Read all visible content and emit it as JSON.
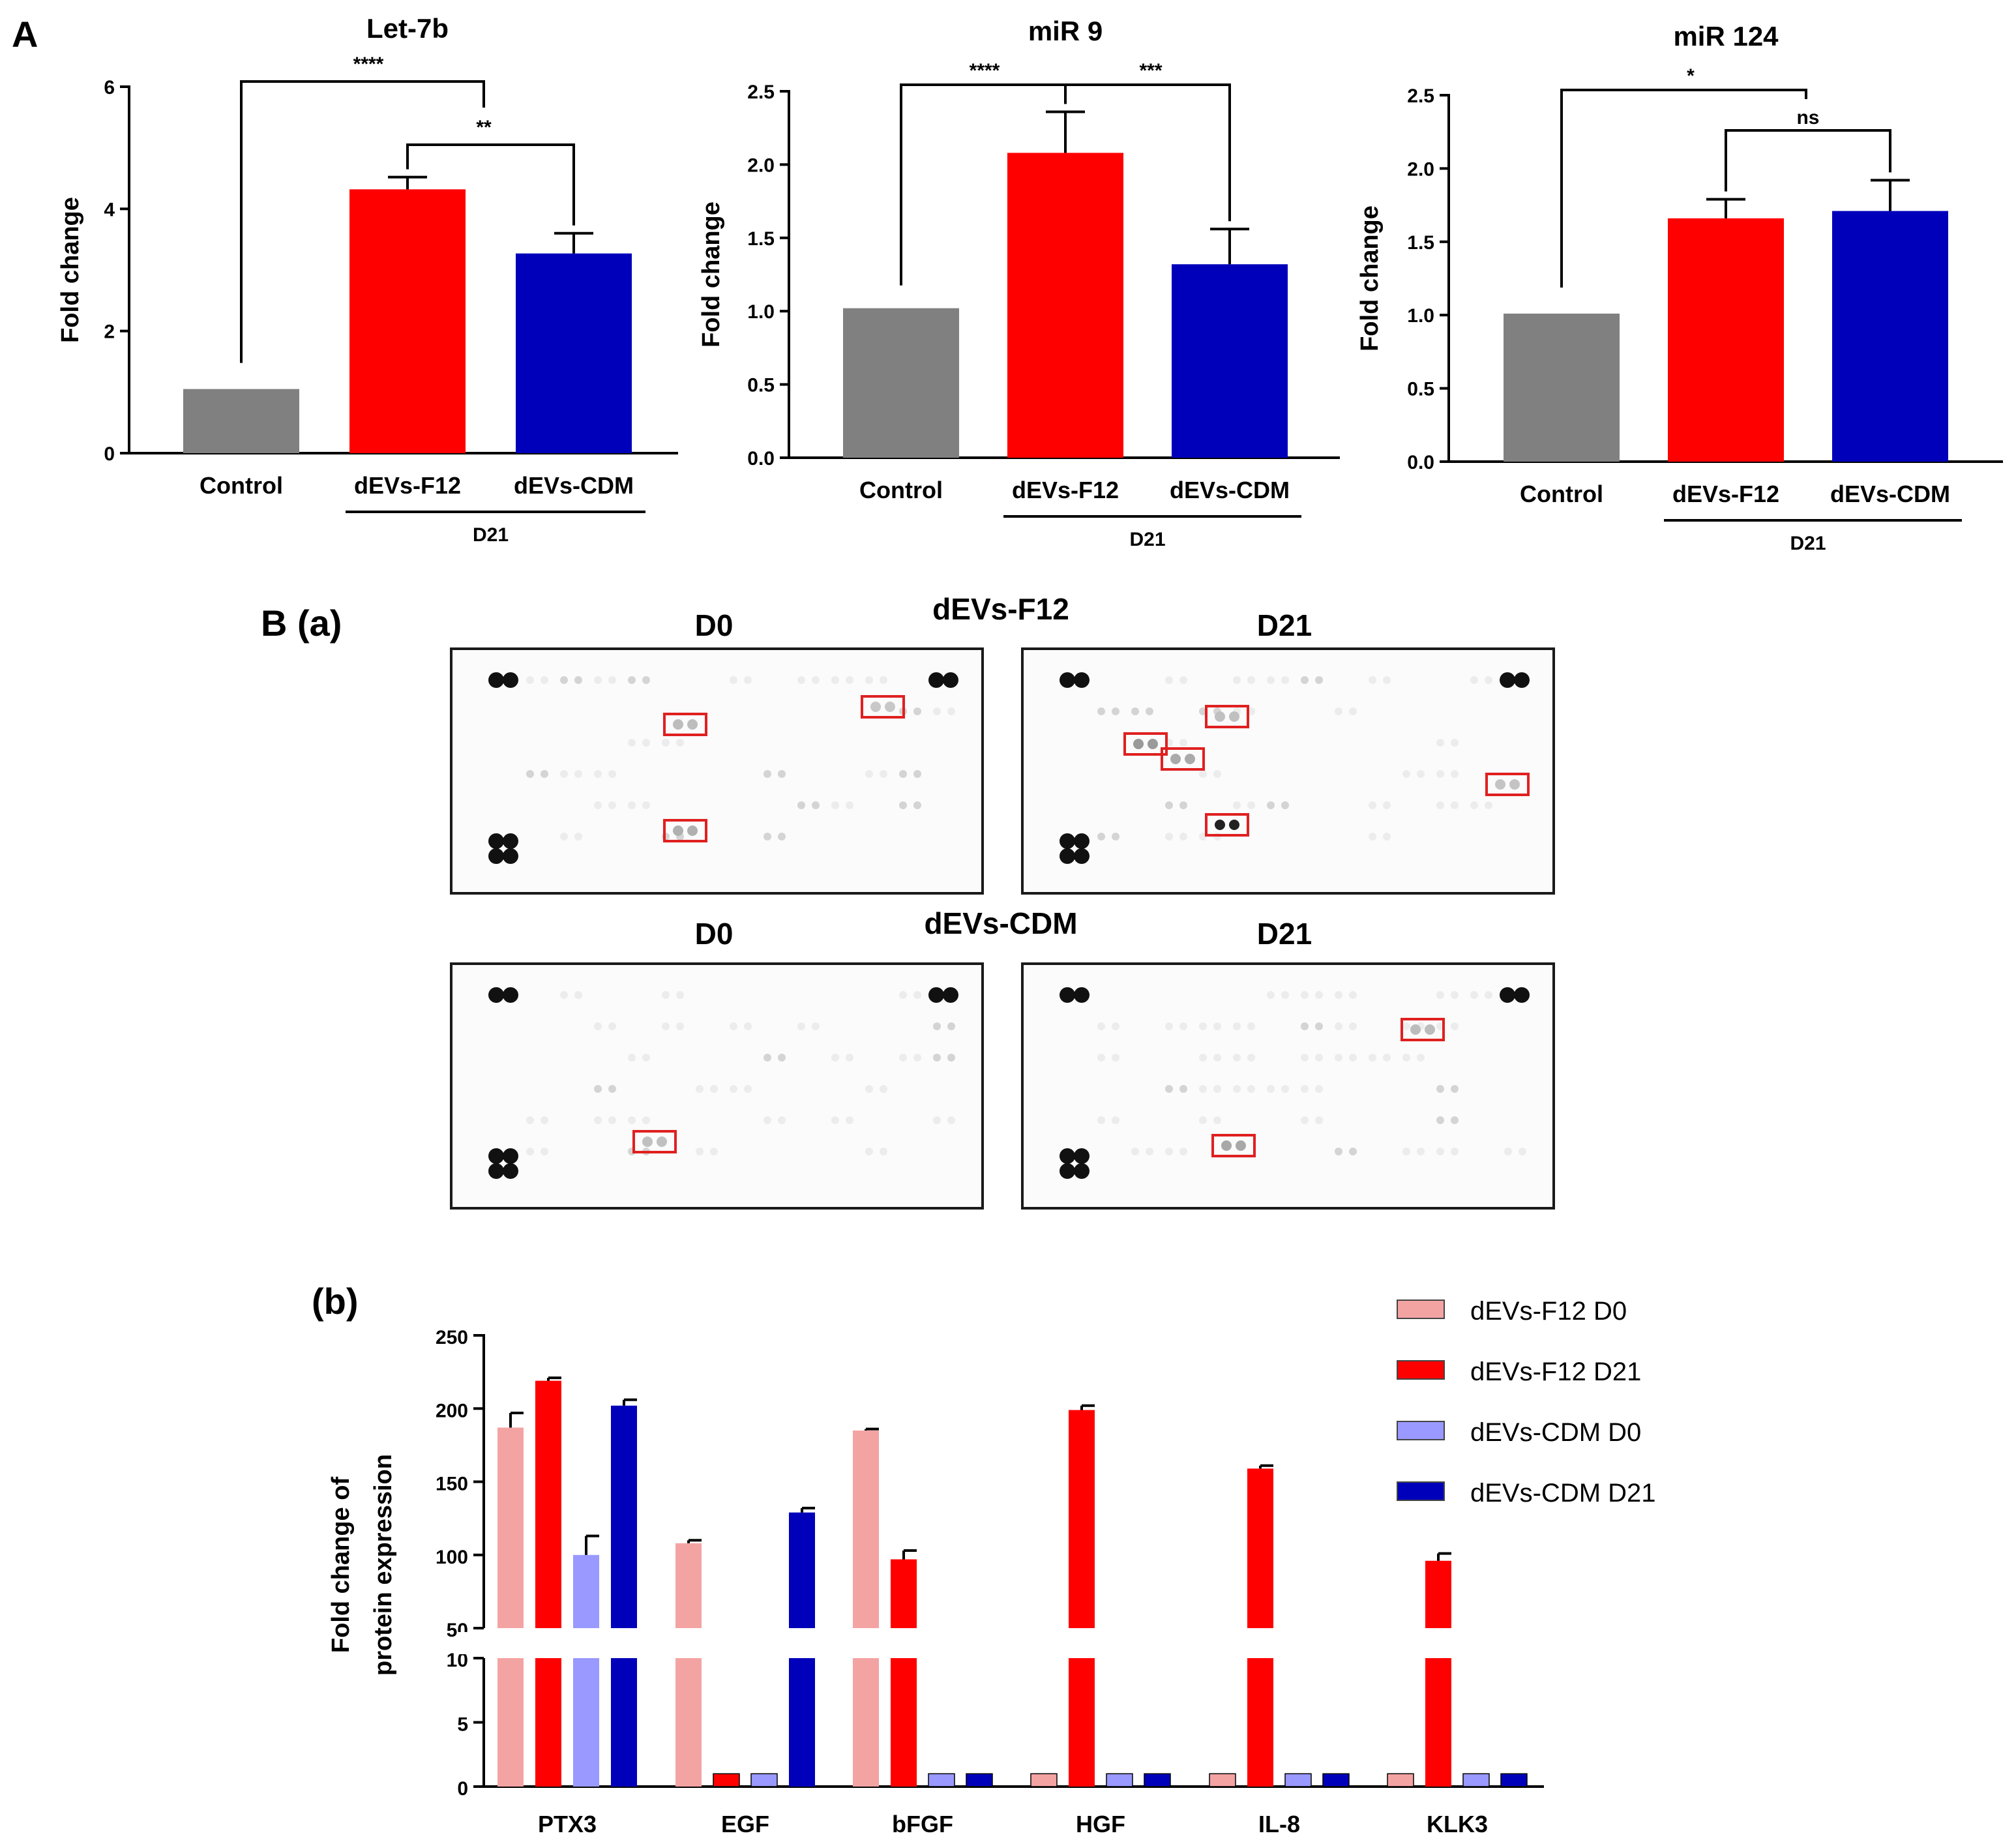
{
  "panel_a_label": "A",
  "panel_b_label": "B (a)",
  "panel_b_sub_label": "(b)",
  "colors": {
    "control": "#808080",
    "f12": "#ff0000",
    "cdm": "#0000bb",
    "f12_d0": "#f4a3a3",
    "f12_d21": "#ff0000",
    "cdm_d0": "#9999ff",
    "cdm_d21": "#0000bb",
    "box": "#e02020"
  },
  "blots": {
    "f12_title": "dEVs-F12",
    "cdm_title": "dEVs-CDM",
    "d0_label": "D0",
    "d21_label": "D21"
  },
  "chart_data": [
    {
      "type": "bar",
      "title": "Let-7b",
      "ylabel": "Fold change",
      "ylim": [
        0,
        6
      ],
      "yticks": [
        "0",
        "2",
        "4",
        "6"
      ],
      "categories": [
        "Control",
        "dEVs-F12",
        "dEVs-CDM"
      ],
      "values": [
        1.05,
        4.32,
        3.27
      ],
      "errors": [
        0,
        0.2,
        0.33
      ],
      "group_label": "D21",
      "significance": [
        {
          "from": 0,
          "to": 1.5,
          "label": "****"
        },
        {
          "from": 1,
          "to": 2,
          "label": "**"
        }
      ]
    },
    {
      "type": "bar",
      "title": "miR 9",
      "ylabel": "Fold change",
      "ylim": [
        0,
        2.5
      ],
      "yticks": [
        "0.0",
        "0.5",
        "1.0",
        "1.5",
        "2.0",
        "2.5"
      ],
      "categories": [
        "Control",
        "dEVs-F12",
        "dEVs-CDM"
      ],
      "values": [
        1.02,
        2.08,
        1.32
      ],
      "errors": [
        0,
        0.28,
        0.24
      ],
      "group_label": "D21",
      "significance": [
        {
          "from": 0,
          "to": 1,
          "label": "****"
        },
        {
          "from": 1,
          "to": 2,
          "label": "***"
        }
      ]
    },
    {
      "type": "bar",
      "title": "miR 124",
      "ylabel": "Fold change",
      "ylim": [
        0,
        2.5
      ],
      "yticks": [
        "0.0",
        "0.5",
        "1.0",
        "1.5",
        "2.0",
        "2.5"
      ],
      "categories": [
        "Control",
        "dEVs-F12",
        "dEVs-CDM"
      ],
      "values": [
        1.01,
        1.66,
        1.71
      ],
      "errors": [
        0,
        0.13,
        0.21
      ],
      "group_label": "D21",
      "significance": [
        {
          "from": 0,
          "to": 1.5,
          "label": "*"
        },
        {
          "from": 1,
          "to": 2,
          "label": "ns"
        }
      ]
    },
    {
      "type": "bar",
      "ylabel": "Fold change of protein expression",
      "ylabel_lines": [
        "Fold change of",
        "protein expression"
      ],
      "y_break": {
        "lower": [
          0,
          10
        ],
        "upper": [
          50,
          250
        ]
      },
      "yticks_lower": [
        "0",
        "5",
        "10"
      ],
      "yticks_upper": [
        "50",
        "100",
        "150",
        "200",
        "250"
      ],
      "categories": [
        "PTX3",
        "EGF",
        "bFGF",
        "HGF",
        "IL-8",
        "KLK3"
      ],
      "series": [
        {
          "name": "dEVs-F12 D0",
          "values": [
            187,
            108,
            185,
            1,
            1,
            1
          ],
          "errors": [
            10,
            2,
            1,
            0,
            0,
            0
          ]
        },
        {
          "name": "dEVs-F12 D21",
          "values": [
            219,
            1,
            97,
            199,
            159,
            96
          ],
          "errors": [
            2,
            0,
            6,
            3,
            2,
            5
          ]
        },
        {
          "name": "dEVs-CDM D0",
          "values": [
            100,
            1,
            1,
            1,
            1,
            1
          ],
          "errors": [
            13,
            0,
            0,
            0,
            0,
            0
          ]
        },
        {
          "name": "dEVs-CDM D21",
          "values": [
            202,
            129,
            1,
            1,
            1,
            1
          ],
          "errors": [
            4,
            3,
            0,
            0,
            0,
            0
          ]
        }
      ],
      "legend_position": "top-right"
    }
  ]
}
